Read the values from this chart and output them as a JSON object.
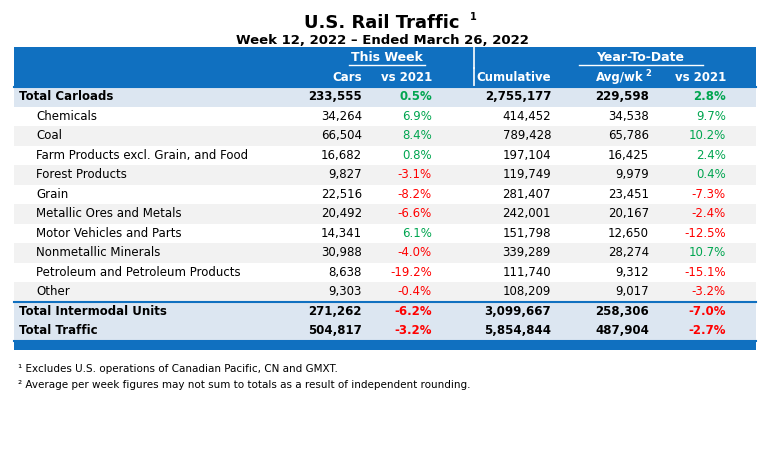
{
  "title": "U.S. Rail Traffic",
  "title_super": "1",
  "subtitle": "Week 12, 2022 – Ended March 26, 2022",
  "rows": [
    {
      "label": "Total Carloads",
      "bold": true,
      "indent": false,
      "sep_above": true,
      "cars": "233,555",
      "vs21": "0.5%",
      "vs21_c": "green",
      "cum": "2,755,177",
      "avg": "229,598",
      "ytd": "2.8%",
      "ytd_c": "green"
    },
    {
      "label": "Chemicals",
      "bold": false,
      "indent": true,
      "sep_above": false,
      "cars": "34,264",
      "vs21": "6.9%",
      "vs21_c": "green",
      "cum": "414,452",
      "avg": "34,538",
      "ytd": "9.7%",
      "ytd_c": "green"
    },
    {
      "label": "Coal",
      "bold": false,
      "indent": true,
      "sep_above": false,
      "cars": "66,504",
      "vs21": "8.4%",
      "vs21_c": "green",
      "cum": "789,428",
      "avg": "65,786",
      "ytd": "10.2%",
      "ytd_c": "green"
    },
    {
      "label": "Farm Products excl. Grain, and Food",
      "bold": false,
      "indent": true,
      "sep_above": false,
      "cars": "16,682",
      "vs21": "0.8%",
      "vs21_c": "green",
      "cum": "197,104",
      "avg": "16,425",
      "ytd": "2.4%",
      "ytd_c": "green"
    },
    {
      "label": "Forest Products",
      "bold": false,
      "indent": true,
      "sep_above": false,
      "cars": "9,827",
      "vs21": "-3.1%",
      "vs21_c": "red",
      "cum": "119,749",
      "avg": "9,979",
      "ytd": "0.4%",
      "ytd_c": "green"
    },
    {
      "label": "Grain",
      "bold": false,
      "indent": true,
      "sep_above": false,
      "cars": "22,516",
      "vs21": "-8.2%",
      "vs21_c": "red",
      "cum": "281,407",
      "avg": "23,451",
      "ytd": "-7.3%",
      "ytd_c": "red"
    },
    {
      "label": "Metallic Ores and Metals",
      "bold": false,
      "indent": true,
      "sep_above": false,
      "cars": "20,492",
      "vs21": "-6.6%",
      "vs21_c": "red",
      "cum": "242,001",
      "avg": "20,167",
      "ytd": "-2.4%",
      "ytd_c": "red"
    },
    {
      "label": "Motor Vehicles and Parts",
      "bold": false,
      "indent": true,
      "sep_above": false,
      "cars": "14,341",
      "vs21": "6.1%",
      "vs21_c": "green",
      "cum": "151,798",
      "avg": "12,650",
      "ytd": "-12.5%",
      "ytd_c": "red"
    },
    {
      "label": "Nonmetallic Minerals",
      "bold": false,
      "indent": true,
      "sep_above": false,
      "cars": "30,988",
      "vs21": "-4.0%",
      "vs21_c": "red",
      "cum": "339,289",
      "avg": "28,274",
      "ytd": "10.7%",
      "ytd_c": "green"
    },
    {
      "label": "Petroleum and Petroleum Products",
      "bold": false,
      "indent": true,
      "sep_above": false,
      "cars": "8,638",
      "vs21": "-19.2%",
      "vs21_c": "red",
      "cum": "111,740",
      "avg": "9,312",
      "ytd": "-15.1%",
      "ytd_c": "red"
    },
    {
      "label": "Other",
      "bold": false,
      "indent": true,
      "sep_above": false,
      "cars": "9,303",
      "vs21": "-0.4%",
      "vs21_c": "red",
      "cum": "108,209",
      "avg": "9,017",
      "ytd": "-3.2%",
      "ytd_c": "red"
    },
    {
      "label": "Total Intermodal Units",
      "bold": true,
      "indent": false,
      "sep_above": true,
      "cars": "271,262",
      "vs21": "-6.2%",
      "vs21_c": "red",
      "cum": "3,099,667",
      "avg": "258,306",
      "ytd": "-7.0%",
      "ytd_c": "red"
    },
    {
      "label": "Total Traffic",
      "bold": true,
      "indent": false,
      "sep_above": false,
      "cars": "504,817",
      "vs21": "-3.2%",
      "vs21_c": "red",
      "cum": "5,854,844",
      "avg": "487,904",
      "ytd": "-2.7%",
      "ytd_c": "red"
    }
  ],
  "footnotes": [
    "¹ Excludes U.S. operations of Canadian Pacific, CN and GMXT.",
    "² Average per week figures may not sum to totals as a result of independent rounding."
  ],
  "blue": "#1070C0",
  "green": "#00A550",
  "red": "#FF0000",
  "bold_row_bg": "#DCE6F1",
  "alt_row_bg": "#F2F2F2",
  "white": "#FFFFFF"
}
